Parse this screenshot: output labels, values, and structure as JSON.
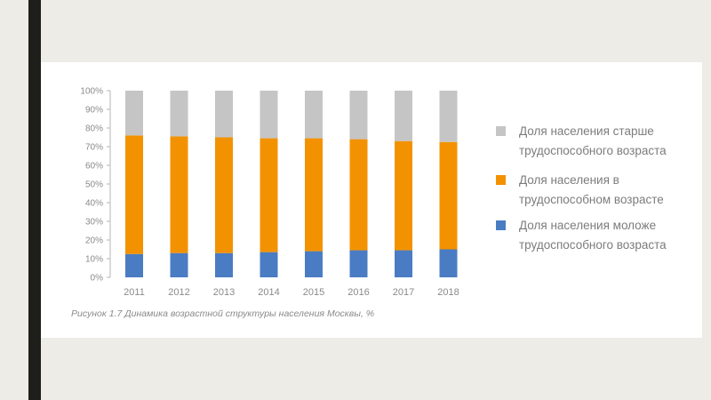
{
  "chart_data": {
    "type": "bar",
    "stacked": true,
    "categories": [
      "2011",
      "2012",
      "2013",
      "2014",
      "2015",
      "2016",
      "2017",
      "2018"
    ],
    "series": [
      {
        "name": "Доля населения моложе трудоспособного возраста",
        "name_lines": [
          "Доля населения моложе",
          "трудоспособного возраста"
        ],
        "color": "#4a7cc3",
        "values": [
          12.5,
          13,
          13,
          13.5,
          14,
          14.5,
          14.5,
          15
        ]
      },
      {
        "name": "Доля населения в трудоспособном возрасте",
        "name_lines": [
          "Доля населения в",
          "трудоспособном возрасте"
        ],
        "color": "#f39200",
        "values": [
          63.5,
          62.5,
          62,
          61,
          60.5,
          59.5,
          58.5,
          57.5
        ]
      },
      {
        "name": "Доля населения старше трудоспособного возраста",
        "name_lines": [
          "Доля населения старше",
          "трудоспособного возраста"
        ],
        "color": "#c5c5c5",
        "values": [
          24,
          24.5,
          25,
          25.5,
          25.5,
          26,
          27,
          27.5
        ]
      }
    ],
    "legend_order": [
      2,
      1,
      0
    ],
    "ylim": [
      0,
      100
    ],
    "yticks": [
      "0%",
      "10%",
      "20%",
      "30%",
      "40%",
      "50%",
      "60%",
      "70%",
      "80%",
      "90%",
      "100%"
    ],
    "caption": "Рисунок 1.7 Динамика возрастной структуры населения Москвы, %",
    "grid": false,
    "legend_position": "right"
  }
}
